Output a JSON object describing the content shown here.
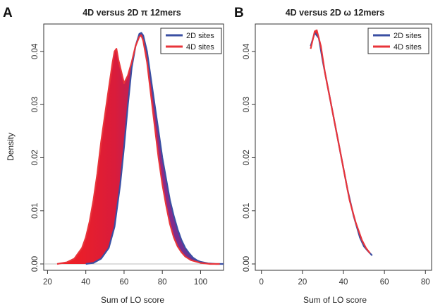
{
  "colors": {
    "blue": "#3a4fa3",
    "red": "#e8343a",
    "frame": "#333333",
    "zero_line": "#bbbbbb"
  },
  "panels": [
    {
      "letter": "A",
      "title": "4D versus 2D π 12mers",
      "xlabel": "Sum of LO score",
      "ylabel": "Density",
      "legend": [
        "2D sites",
        "4D sites"
      ]
    },
    {
      "letter": "B",
      "title": "4D versus 2D ω 12mers",
      "xlabel": "Sum of LO score",
      "ylabel": "",
      "legend": [
        "2D sites",
        "4D sites"
      ]
    }
  ],
  "chart_data": [
    {
      "type": "line",
      "title": "4D versus 2D π 12mers",
      "xlabel": "Sum of LO score",
      "ylabel": "Density",
      "xlim": [
        18,
        112
      ],
      "ylim": [
        0,
        0.0445
      ],
      "xticks": [
        20,
        40,
        60,
        80,
        100
      ],
      "yticks": [
        0.0,
        0.01,
        0.02,
        0.03,
        0.04
      ],
      "xtick_labels": [
        "20",
        "40",
        "60",
        "80",
        "100"
      ],
      "ytick_labels": [
        "0.00",
        "0.01",
        "0.02",
        "0.03",
        "0.04"
      ],
      "legend_position": "top-right",
      "fill_between_series": true,
      "series": [
        {
          "name": "2D sites",
          "color": "#3a4fa3",
          "x": [
            40,
            44,
            48,
            52,
            55,
            58,
            60,
            62,
            64,
            66,
            68,
            69,
            70,
            72,
            74,
            76,
            78,
            80,
            82,
            84,
            86,
            88,
            90,
            92,
            94,
            96,
            98,
            100,
            104,
            108,
            112
          ],
          "y": [
            0.0,
            0.0002,
            0.001,
            0.003,
            0.007,
            0.015,
            0.022,
            0.03,
            0.037,
            0.041,
            0.0433,
            0.0435,
            0.043,
            0.04,
            0.035,
            0.03,
            0.025,
            0.02,
            0.016,
            0.012,
            0.009,
            0.0065,
            0.0045,
            0.003,
            0.002,
            0.0012,
            0.0007,
            0.0004,
            0.0001,
            0.0,
            0.0
          ]
        },
        {
          "name": "4D sites",
          "color": "#e8343a",
          "x": [
            25,
            30,
            34,
            38,
            40,
            42,
            44,
            46,
            48,
            50,
            52,
            54,
            55,
            56,
            57,
            58,
            60,
            62,
            64,
            66,
            68,
            69,
            70,
            72,
            74,
            76,
            78,
            80,
            82,
            84,
            86,
            88,
            90,
            92,
            95,
            100,
            105,
            110
          ],
          "y": [
            0.0,
            0.0003,
            0.001,
            0.003,
            0.005,
            0.008,
            0.012,
            0.017,
            0.023,
            0.028,
            0.033,
            0.038,
            0.04,
            0.0405,
            0.0385,
            0.037,
            0.034,
            0.0355,
            0.038,
            0.041,
            0.0428,
            0.043,
            0.042,
            0.038,
            0.032,
            0.026,
            0.02,
            0.015,
            0.011,
            0.0075,
            0.005,
            0.0033,
            0.0022,
            0.0014,
            0.0007,
            0.0002,
            0.0,
            0.0
          ]
        }
      ]
    },
    {
      "type": "line",
      "title": "4D versus 2D ω 12mers",
      "xlabel": "Sum of LO score",
      "ylabel": "",
      "xlim": [
        -3,
        83
      ],
      "ylim": [
        0,
        0.0445
      ],
      "xticks": [
        0,
        20,
        40,
        60,
        80
      ],
      "yticks": [
        0.0,
        0.01,
        0.02,
        0.03,
        0.04
      ],
      "xtick_labels": [
        "0",
        "20",
        "40",
        "60",
        "80"
      ],
      "ytick_labels": [
        "0.00",
        "0.01",
        "0.02",
        "0.03",
        "0.04"
      ],
      "legend_position": "top-right",
      "fill_between_series": true,
      "series": [
        {
          "name": "2D sites",
          "color": "#3a4fa3",
          "x": [
            24,
            26,
            28,
            30,
            33,
            36,
            39,
            42,
            45,
            48,
            50,
            52,
            54
          ],
          "y": [
            0.041,
            0.0435,
            0.0425,
            0.038,
            0.032,
            0.026,
            0.02,
            0.014,
            0.009,
            0.005,
            0.0033,
            0.0024,
            0.0016
          ]
        },
        {
          "name": "4D sites",
          "color": "#e8343a",
          "x": [
            24,
            26,
            27,
            29,
            31,
            34,
            37,
            40,
            43,
            46,
            49,
            51,
            53
          ],
          "y": [
            0.0405,
            0.0438,
            0.044,
            0.041,
            0.036,
            0.03,
            0.024,
            0.018,
            0.012,
            0.0078,
            0.0045,
            0.003,
            0.002
          ]
        }
      ]
    }
  ]
}
